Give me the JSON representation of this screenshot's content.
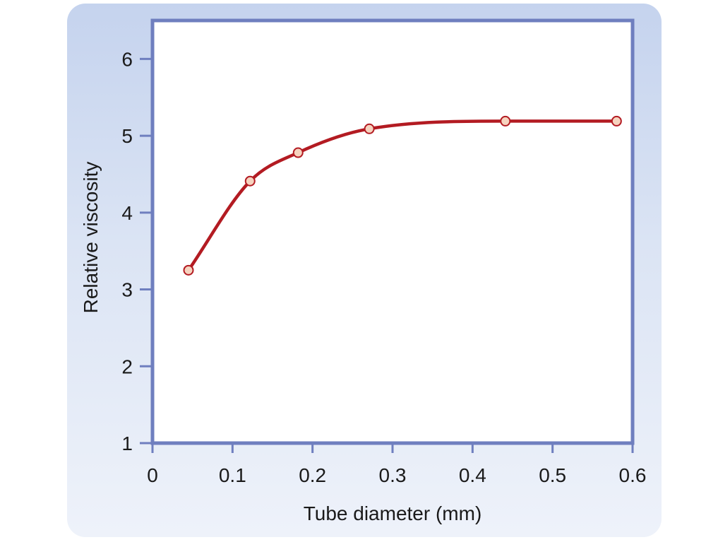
{
  "chart_data": {
    "type": "line",
    "title": "",
    "xlabel": "Tube diameter (mm)",
    "ylabel": "Relative viscosity",
    "xlim": [
      0,
      0.6
    ],
    "ylim": [
      1,
      6.5
    ],
    "x_ticks": [
      "0",
      "0.1",
      "0.2",
      "0.3",
      "0.4",
      "0.5",
      "0.6"
    ],
    "y_ticks": [
      "1",
      "2",
      "3",
      "4",
      "5",
      "6"
    ],
    "grid": false,
    "legend": "none",
    "series": [
      {
        "x": [
          0.045,
          0.122,
          0.182,
          0.271,
          0.441,
          0.58
        ],
        "y": [
          3.25,
          4.41,
          4.78,
          5.09,
          5.19,
          5.19
        ]
      }
    ],
    "colors": {
      "line": "#b31b22",
      "marker_fill": "#f6d3bf",
      "marker_stroke": "#b31b22",
      "frame": "#6f7fbf",
      "plot_bg": "#ffffff"
    }
  }
}
